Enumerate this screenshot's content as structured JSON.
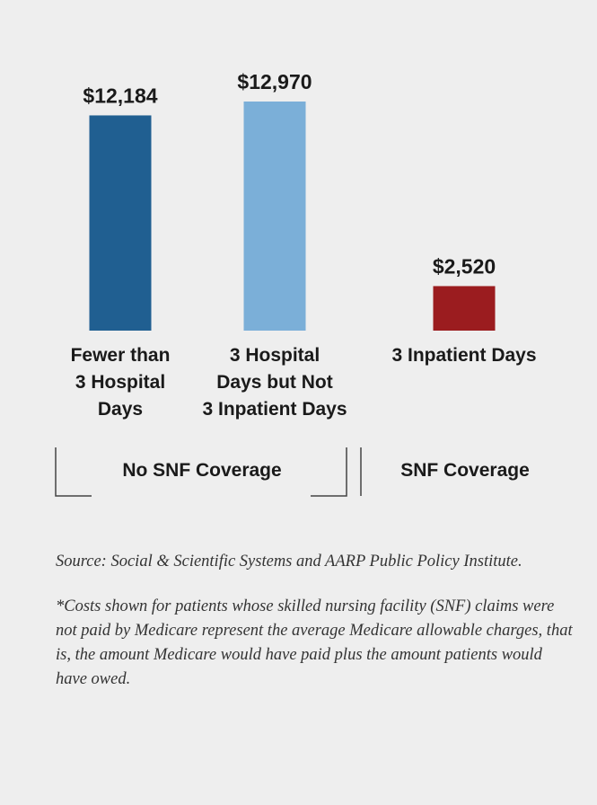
{
  "chart_data": {
    "type": "bar",
    "categories": [
      "Fewer than 3 Hospital Days",
      "3 Hospital Days but Not 3 Inpatient Days",
      "3 Inpatient Days"
    ],
    "category_lines": [
      [
        "Fewer than",
        "3 Hospital",
        "Days"
      ],
      [
        "3 Hospital",
        "Days but Not",
        "3 Inpatient Days"
      ],
      [
        "3 Inpatient Days"
      ]
    ],
    "values": [
      12184,
      12970,
      2520
    ],
    "value_labels": [
      "$12,184",
      "$12,970",
      "$2,520"
    ],
    "colors": [
      "#205f91",
      "#7bafd8",
      "#9b1c1f"
    ],
    "groups": [
      {
        "label": "No SNF Coverage",
        "categories": [
          0,
          1
        ]
      },
      {
        "label": "SNF Coverage",
        "categories": [
          2
        ]
      }
    ],
    "ylim": [
      0,
      12970
    ],
    "grid": false,
    "legend": "none"
  },
  "notes": {
    "source": "Source: Social & Scientific Systems and AARP Public Policy Institute.",
    "footnote": "*Costs shown for patients whose skilled nursing facility (SNF) claims were not paid by Medicare represent the average Medicare allowable charges, that is, the amount Medicare would have paid plus the amount patients would have owed."
  }
}
